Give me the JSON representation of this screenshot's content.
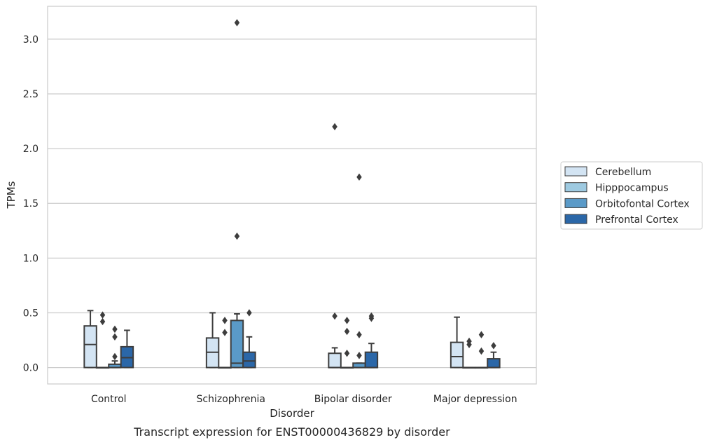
{
  "chart_data": {
    "type": "box",
    "title": "",
    "caption": "Transcript expression for ENST00000436829 by disorder",
    "xlabel": "Disorder",
    "ylabel": "TPMs",
    "ylim": [
      -0.15,
      3.3
    ],
    "yticks": [
      0.0,
      0.5,
      1.0,
      1.5,
      2.0,
      2.5,
      3.0
    ],
    "ytick_labels": [
      "0.0",
      "0.5",
      "1.0",
      "1.5",
      "2.0",
      "2.5",
      "3.0"
    ],
    "grid": "horizontal",
    "legend_position": "right",
    "categories": [
      "Control",
      "Schizophrenia",
      "Bipolar disorder",
      "Major depression"
    ],
    "series": [
      {
        "name": "Cerebellum",
        "color": "#d3e4f3",
        "boxes": [
          {
            "q1": 0.0,
            "median": 0.21,
            "q3": 0.38,
            "whisker_low": 0.0,
            "whisker_high": 0.52,
            "outliers": []
          },
          {
            "q1": 0.0,
            "median": 0.14,
            "q3": 0.27,
            "whisker_low": 0.0,
            "whisker_high": 0.5,
            "outliers": []
          },
          {
            "q1": 0.0,
            "median": 0.0,
            "q3": 0.13,
            "whisker_low": 0.0,
            "whisker_high": 0.18,
            "outliers": [
              0.47,
              2.2
            ]
          },
          {
            "q1": 0.0,
            "median": 0.1,
            "q3": 0.23,
            "whisker_low": 0.0,
            "whisker_high": 0.46,
            "outliers": []
          }
        ]
      },
      {
        "name": "Hipppocampus",
        "color": "#9ecae1",
        "boxes": [
          {
            "q1": 0.0,
            "median": 0.0,
            "q3": 0.0,
            "whisker_low": 0.0,
            "whisker_high": 0.0,
            "outliers": [
              0.42,
              0.48
            ]
          },
          {
            "q1": 0.0,
            "median": 0.0,
            "q3": 0.0,
            "whisker_low": 0.0,
            "whisker_high": 0.0,
            "outliers": [
              0.32,
              0.43
            ]
          },
          {
            "q1": 0.0,
            "median": 0.0,
            "q3": 0.0,
            "whisker_low": 0.0,
            "whisker_high": 0.0,
            "outliers": [
              0.13,
              0.33,
              0.43
            ]
          },
          {
            "q1": 0.0,
            "median": 0.0,
            "q3": 0.0,
            "whisker_low": 0.0,
            "whisker_high": 0.0,
            "outliers": [
              0.21,
              0.24
            ]
          }
        ]
      },
      {
        "name": "Orbitofontal Cortex",
        "color": "#5a9ac8",
        "boxes": [
          {
            "q1": 0.0,
            "median": 0.0,
            "q3": 0.03,
            "whisker_low": 0.0,
            "whisker_high": 0.06,
            "outliers": [
              0.1,
              0.28,
              0.35
            ]
          },
          {
            "q1": 0.0,
            "median": 0.04,
            "q3": 0.43,
            "whisker_low": 0.0,
            "whisker_high": 0.49,
            "outliers": [
              1.2,
              3.15
            ]
          },
          {
            "q1": 0.0,
            "median": 0.0,
            "q3": 0.04,
            "whisker_low": 0.0,
            "whisker_high": 0.04,
            "outliers": [
              0.11,
              0.3,
              1.74
            ]
          },
          {
            "q1": 0.0,
            "median": 0.0,
            "q3": 0.0,
            "whisker_low": 0.0,
            "whisker_high": 0.0,
            "outliers": [
              0.15,
              0.3
            ]
          }
        ]
      },
      {
        "name": "Prefrontal Cortex",
        "color": "#2b67a8",
        "boxes": [
          {
            "q1": 0.0,
            "median": 0.09,
            "q3": 0.19,
            "whisker_low": 0.0,
            "whisker_high": 0.34,
            "outliers": []
          },
          {
            "q1": 0.0,
            "median": 0.06,
            "q3": 0.14,
            "whisker_low": 0.0,
            "whisker_high": 0.28,
            "outliers": [
              0.5
            ]
          },
          {
            "q1": 0.0,
            "median": 0.0,
            "q3": 0.14,
            "whisker_low": 0.0,
            "whisker_high": 0.22,
            "outliers": [
              0.45,
              0.47
            ]
          },
          {
            "q1": 0.0,
            "median": 0.0,
            "q3": 0.08,
            "whisker_low": 0.0,
            "whisker_high": 0.14,
            "outliers": [
              0.2
            ]
          }
        ]
      }
    ]
  }
}
